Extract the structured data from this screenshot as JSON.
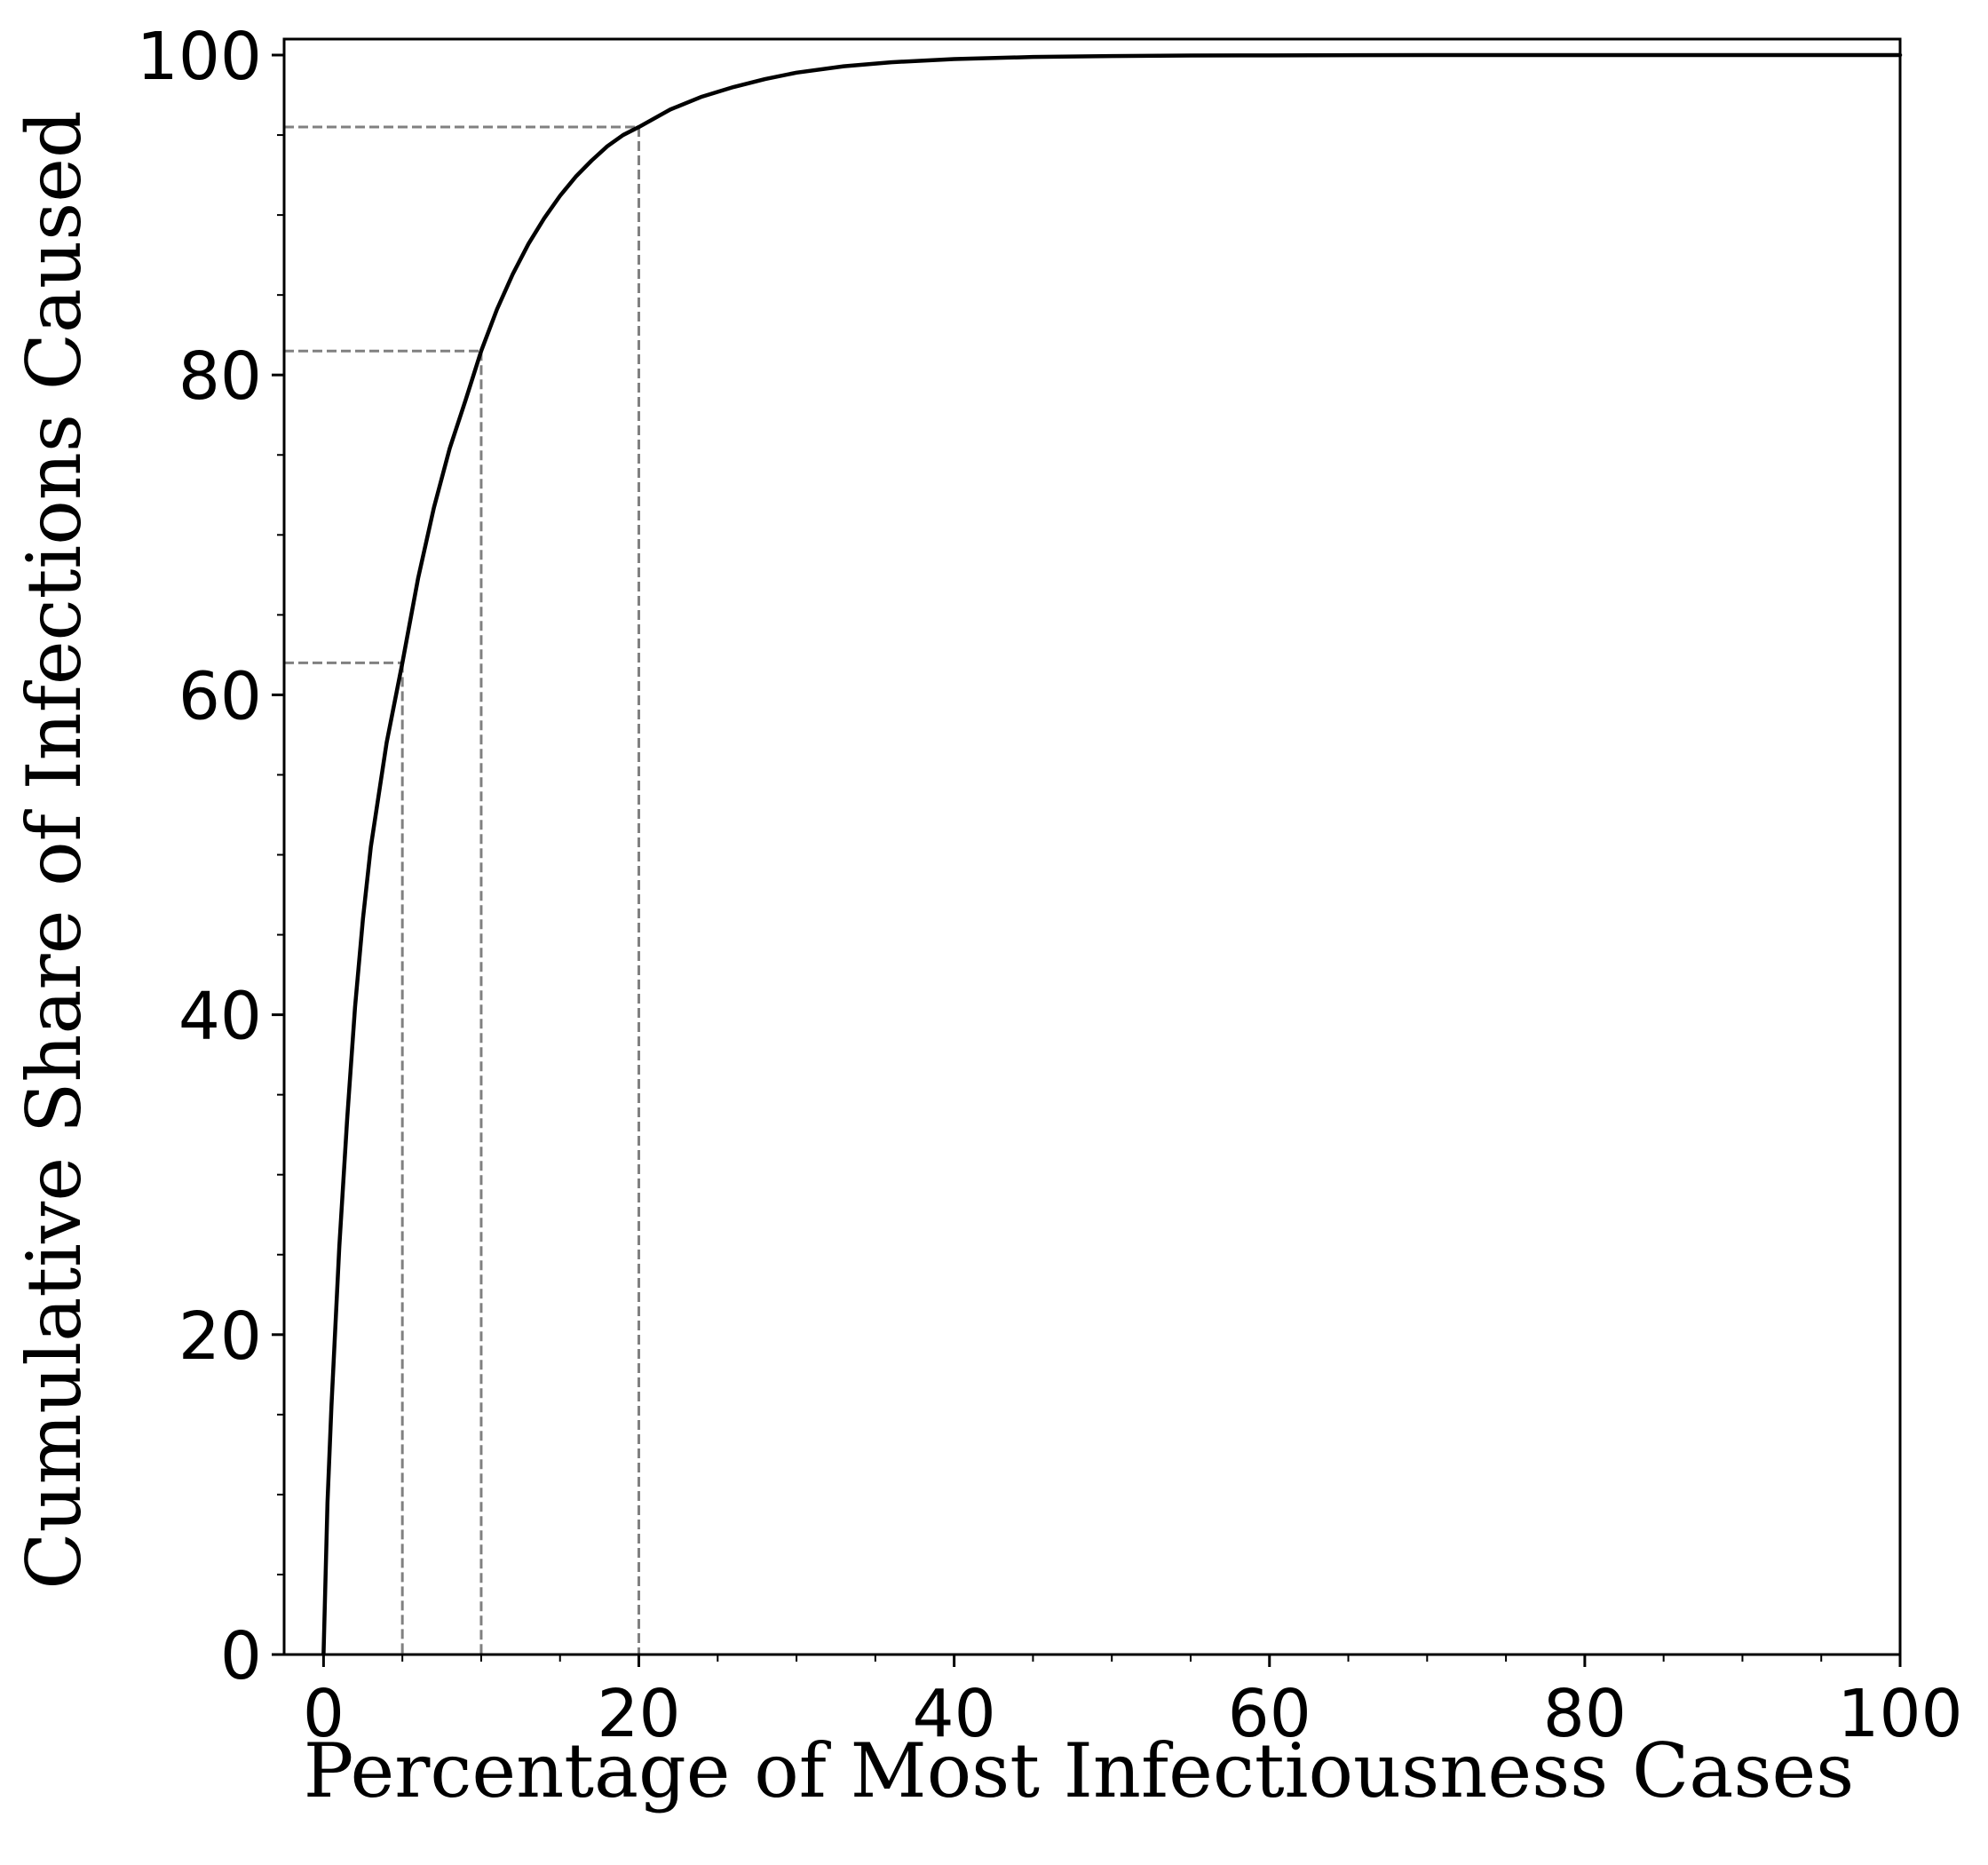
{
  "chart_data": {
    "type": "line",
    "title": "",
    "xlabel": "Percentage of Most Infectiousness Cases",
    "ylabel": "Cumulative Share of Infections Caused",
    "xlim": [
      -2.5,
      100
    ],
    "ylim": [
      0,
      101
    ],
    "x_ticks": [
      0,
      20,
      40,
      60,
      80,
      100
    ],
    "y_ticks": [
      0,
      20,
      40,
      60,
      80,
      100
    ],
    "x_minor_ticks": [
      5,
      10,
      15,
      25,
      30,
      35,
      45,
      50,
      55,
      65,
      70,
      75,
      85,
      90,
      95
    ],
    "y_minor_ticks": [
      5,
      10,
      15,
      25,
      30,
      35,
      45,
      50,
      55,
      65,
      70,
      75,
      85,
      90,
      95
    ],
    "x_tick_labels": [
      "0",
      "20",
      "40",
      "60",
      "80",
      "100"
    ],
    "y_tick_labels": [
      "0",
      "20",
      "40",
      "60",
      "80",
      "100"
    ],
    "grid": false,
    "legend": "none",
    "line_color": "#000000",
    "reference_color": "#808080",
    "series": [
      {
        "x": [
          0,
          0.25,
          0.5,
          1,
          1.5,
          2,
          2.5,
          3,
          4,
          5,
          6,
          7,
          8,
          9,
          10,
          11,
          12,
          13,
          14,
          15,
          16,
          17,
          18,
          19,
          20,
          22,
          24,
          26,
          28,
          30,
          33,
          36,
          40,
          45,
          50,
          55,
          60,
          70,
          80,
          90,
          100
        ],
        "y": [
          0,
          9.5,
          15.5,
          25.5,
          33.5,
          40.5,
          46.0,
          50.5,
          57.0,
          62.0,
          67.3,
          71.7,
          75.4,
          78.4,
          81.5,
          84.1,
          86.3,
          88.2,
          89.8,
          91.2,
          92.4,
          93.4,
          94.3,
          95.0,
          95.5,
          96.6,
          97.4,
          98.0,
          98.5,
          98.9,
          99.3,
          99.55,
          99.75,
          99.88,
          99.94,
          99.97,
          99.98,
          100,
          100,
          100,
          100
        ]
      }
    ],
    "reference_lines": [
      {
        "x": 5,
        "y": 62.0
      },
      {
        "x": 10,
        "y": 81.5
      },
      {
        "x": 20,
        "y": 95.5
      }
    ]
  }
}
